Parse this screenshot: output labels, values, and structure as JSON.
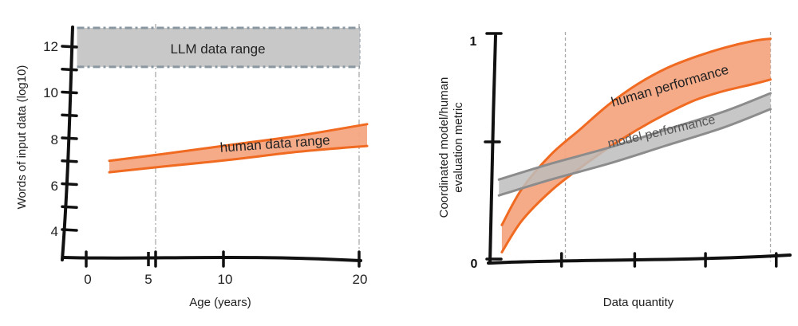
{
  "chart_data": [
    {
      "type": "area",
      "xlabel": "Age (years)",
      "ylabel": "Words of input data (log10)",
      "xlim": [
        -2,
        21
      ],
      "ylim": [
        3,
        13
      ],
      "xticks": [
        0,
        5,
        10,
        20
      ],
      "yticks": [
        4,
        6,
        8,
        10,
        12
      ],
      "vlines": [
        5,
        20
      ],
      "grid": false,
      "series": [
        {
          "name": "LLM data range",
          "color": "#c8c8c8",
          "x": [
            -0.5,
            20
          ],
          "lower": [
            11.1,
            11.1
          ],
          "upper": [
            12.8,
            12.8
          ]
        },
        {
          "name": "human data range",
          "color": "#f4a582",
          "edge_color": "#f06a21",
          "x": [
            1,
            5,
            10,
            15,
            20
          ],
          "lower": [
            6.5,
            6.75,
            7.05,
            7.4,
            7.65
          ],
          "upper": [
            7.0,
            7.3,
            7.7,
            8.1,
            8.6
          ]
        }
      ]
    },
    {
      "type": "area",
      "xlabel": "Data quantity",
      "ylabel": "Coordinated model/human evaluation metric",
      "xlim": [
        0,
        1
      ],
      "ylim": [
        0,
        1
      ],
      "yticks": [
        0,
        1
      ],
      "x_tick_count": 5,
      "vlines": [
        0.25,
        0.96
      ],
      "grid": false,
      "series": [
        {
          "name": "human performance",
          "color": "#f4a582",
          "edge_color": "#f06a21",
          "x": [
            0.03,
            0.1,
            0.2,
            0.3,
            0.4,
            0.5,
            0.6,
            0.7,
            0.8,
            0.9,
            0.96
          ],
          "lower": [
            0.03,
            0.17,
            0.3,
            0.4,
            0.49,
            0.57,
            0.64,
            0.7,
            0.74,
            0.77,
            0.79
          ],
          "upper": [
            0.15,
            0.31,
            0.46,
            0.57,
            0.68,
            0.77,
            0.84,
            0.89,
            0.93,
            0.96,
            0.97
          ]
        },
        {
          "name": "model performance",
          "color": "#bdbdbd",
          "edge_color": "#8c8c8c",
          "x": [
            0.02,
            0.2,
            0.4,
            0.6,
            0.8,
            0.96
          ],
          "lower": [
            0.28,
            0.35,
            0.42,
            0.5,
            0.58,
            0.66
          ],
          "upper": [
            0.35,
            0.42,
            0.49,
            0.57,
            0.65,
            0.73
          ]
        }
      ]
    }
  ],
  "left": {
    "band_labels": {
      "llm": "LLM data range",
      "human": "human data range"
    },
    "xtick_labels": [
      "0",
      "5",
      "10",
      "20"
    ],
    "ytick_labels": [
      "4",
      "6",
      "8",
      "10",
      "12"
    ],
    "xlabel": "Age (years)",
    "ylabel": "Words of input data (log10)"
  },
  "right": {
    "band_labels": {
      "human": "human performance",
      "model": "model performance"
    },
    "ytick_labels": {
      "top": "1",
      "bottom": "0"
    },
    "xlabel": "Data quantity",
    "ylabel_line1": "Coordinated model/human",
    "ylabel_line2": "evaluation metric"
  }
}
